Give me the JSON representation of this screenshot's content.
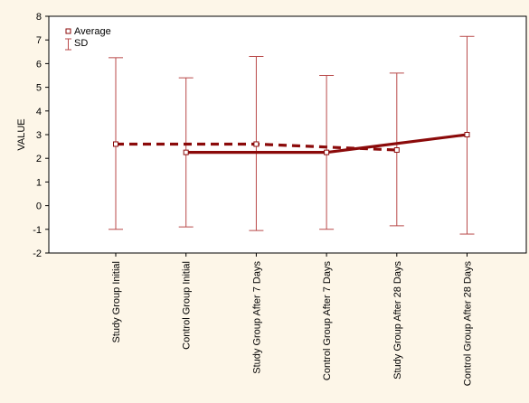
{
  "chart_data": {
    "type": "line",
    "ylabel": "VALUE",
    "ylim": [
      -2,
      8
    ],
    "yticks": [
      8,
      7,
      6,
      5,
      4,
      3,
      2,
      1,
      0,
      -1,
      -2
    ],
    "categories": [
      "Study Group Initial",
      "Control Group Initial",
      "Study Group After 7 Days",
      "Control Group After 7 Days",
      "Study Group After 28 Days",
      "Control Group After 28 Days"
    ],
    "averages": [
      2.6,
      2.25,
      2.6,
      2.25,
      2.35,
      3.0
    ],
    "sd_upper": [
      6.25,
      5.4,
      6.3,
      5.5,
      5.6,
      7.15
    ],
    "sd_lower": [
      -1.0,
      -0.9,
      -1.05,
      -1.0,
      -0.85,
      -1.2
    ],
    "series": [
      {
        "style": "dashed",
        "points": [
          0,
          2,
          4
        ]
      },
      {
        "style": "solid",
        "points": [
          1,
          3,
          5
        ]
      }
    ],
    "legend": {
      "average_label": "Average",
      "sd_label": "SD",
      "position": "top-left"
    },
    "colors": {
      "line": "#8b0a0a",
      "errorbar": "#b94a4a",
      "background": "#fdf6e8"
    },
    "grid": false
  }
}
